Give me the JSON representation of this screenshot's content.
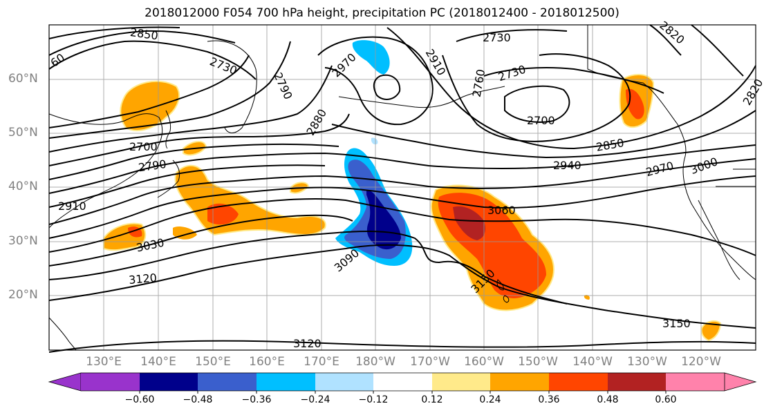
{
  "title": "2018012000 F054 700 hPa height, precipitation PC (2018012400 - 2018012500)",
  "lat_labels": [
    "60°N",
    "50°N",
    "40°N",
    "30°N",
    "20°N"
  ],
  "lon_labels": [
    "130°E",
    "140°E",
    "150°E",
    "160°E",
    "170°E",
    "180°W",
    "170°W",
    "160°W",
    "150°W",
    "140°W",
    "130°W",
    "120°W"
  ],
  "contour_labels": [
    "2850",
    "2730",
    "2970",
    "2910",
    "2730",
    "2820",
    "2730",
    "2760",
    "2700",
    "2880",
    "2790",
    "2820",
    "2700",
    "2850",
    "2790",
    "2940",
    "2970",
    "3000",
    "2910",
    "3060",
    "3030",
    "3090",
    "3150",
    "3120",
    "3150",
    "3120",
    "60"
  ],
  "colorbar": {
    "ticks": [
      "−0.60",
      "−0.48",
      "−0.36",
      "−0.24",
      "−0.12",
      "0.12",
      "0.24",
      "0.36",
      "0.48",
      "0.60"
    ],
    "colors": [
      "#9933cc",
      "#00008b",
      "#3a5fcd",
      "#00bfff",
      "#b0e2ff",
      "#ffffff",
      "#ffea8a",
      "#ffa500",
      "#ff4500",
      "#b22222",
      "#ff82ab"
    ]
  }
}
